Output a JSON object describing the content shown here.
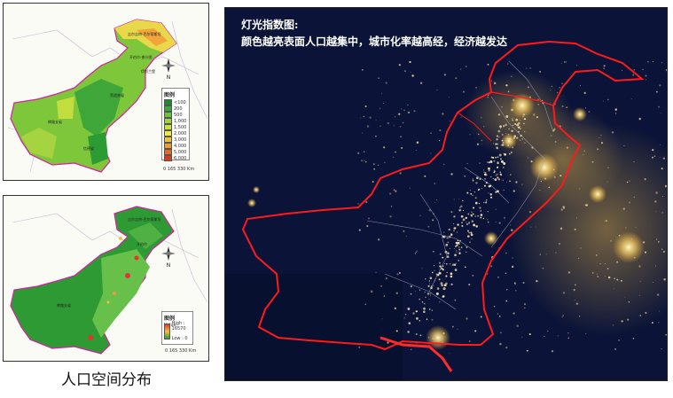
{
  "caption": "人口空间分布",
  "night_map": {
    "title_line1": "灯光指数图:",
    "title_line2": "颜色越亮表面人口越集中，城市化率越高经，经济越发达"
  },
  "elevation_map": {
    "legend_title": "图例",
    "legend_items": [
      {
        "label": "<100",
        "color": "#1e8b2e"
      },
      {
        "label": "200",
        "color": "#3aa83a"
      },
      {
        "label": "500",
        "color": "#6cc23c"
      },
      {
        "label": "1,000",
        "color": "#9bd43e"
      },
      {
        "label": "1,500",
        "color": "#c8e23a"
      },
      {
        "label": "2,000",
        "color": "#eee84a"
      },
      {
        "label": "3,000",
        "color": "#f2c23a"
      },
      {
        "label": "4,000",
        "color": "#ee9a30"
      },
      {
        "label": "5,000",
        "color": "#e56a26"
      },
      {
        "label": "6,000",
        "color": "#d83a20"
      }
    ],
    "scale": "0    165   330 Km",
    "north": "N"
  },
  "population_map": {
    "legend_title": "图例",
    "value_label": "Value",
    "high_label": "High : 16570",
    "low_label": "Low : 0",
    "scale": "0    165   330 Km",
    "north": "N"
  },
  "colors": {
    "border_pink": "#d61fa0",
    "border_red": "#ff1a1a",
    "night_bg": "#0b1438",
    "city_light": "#ffe9a8"
  }
}
